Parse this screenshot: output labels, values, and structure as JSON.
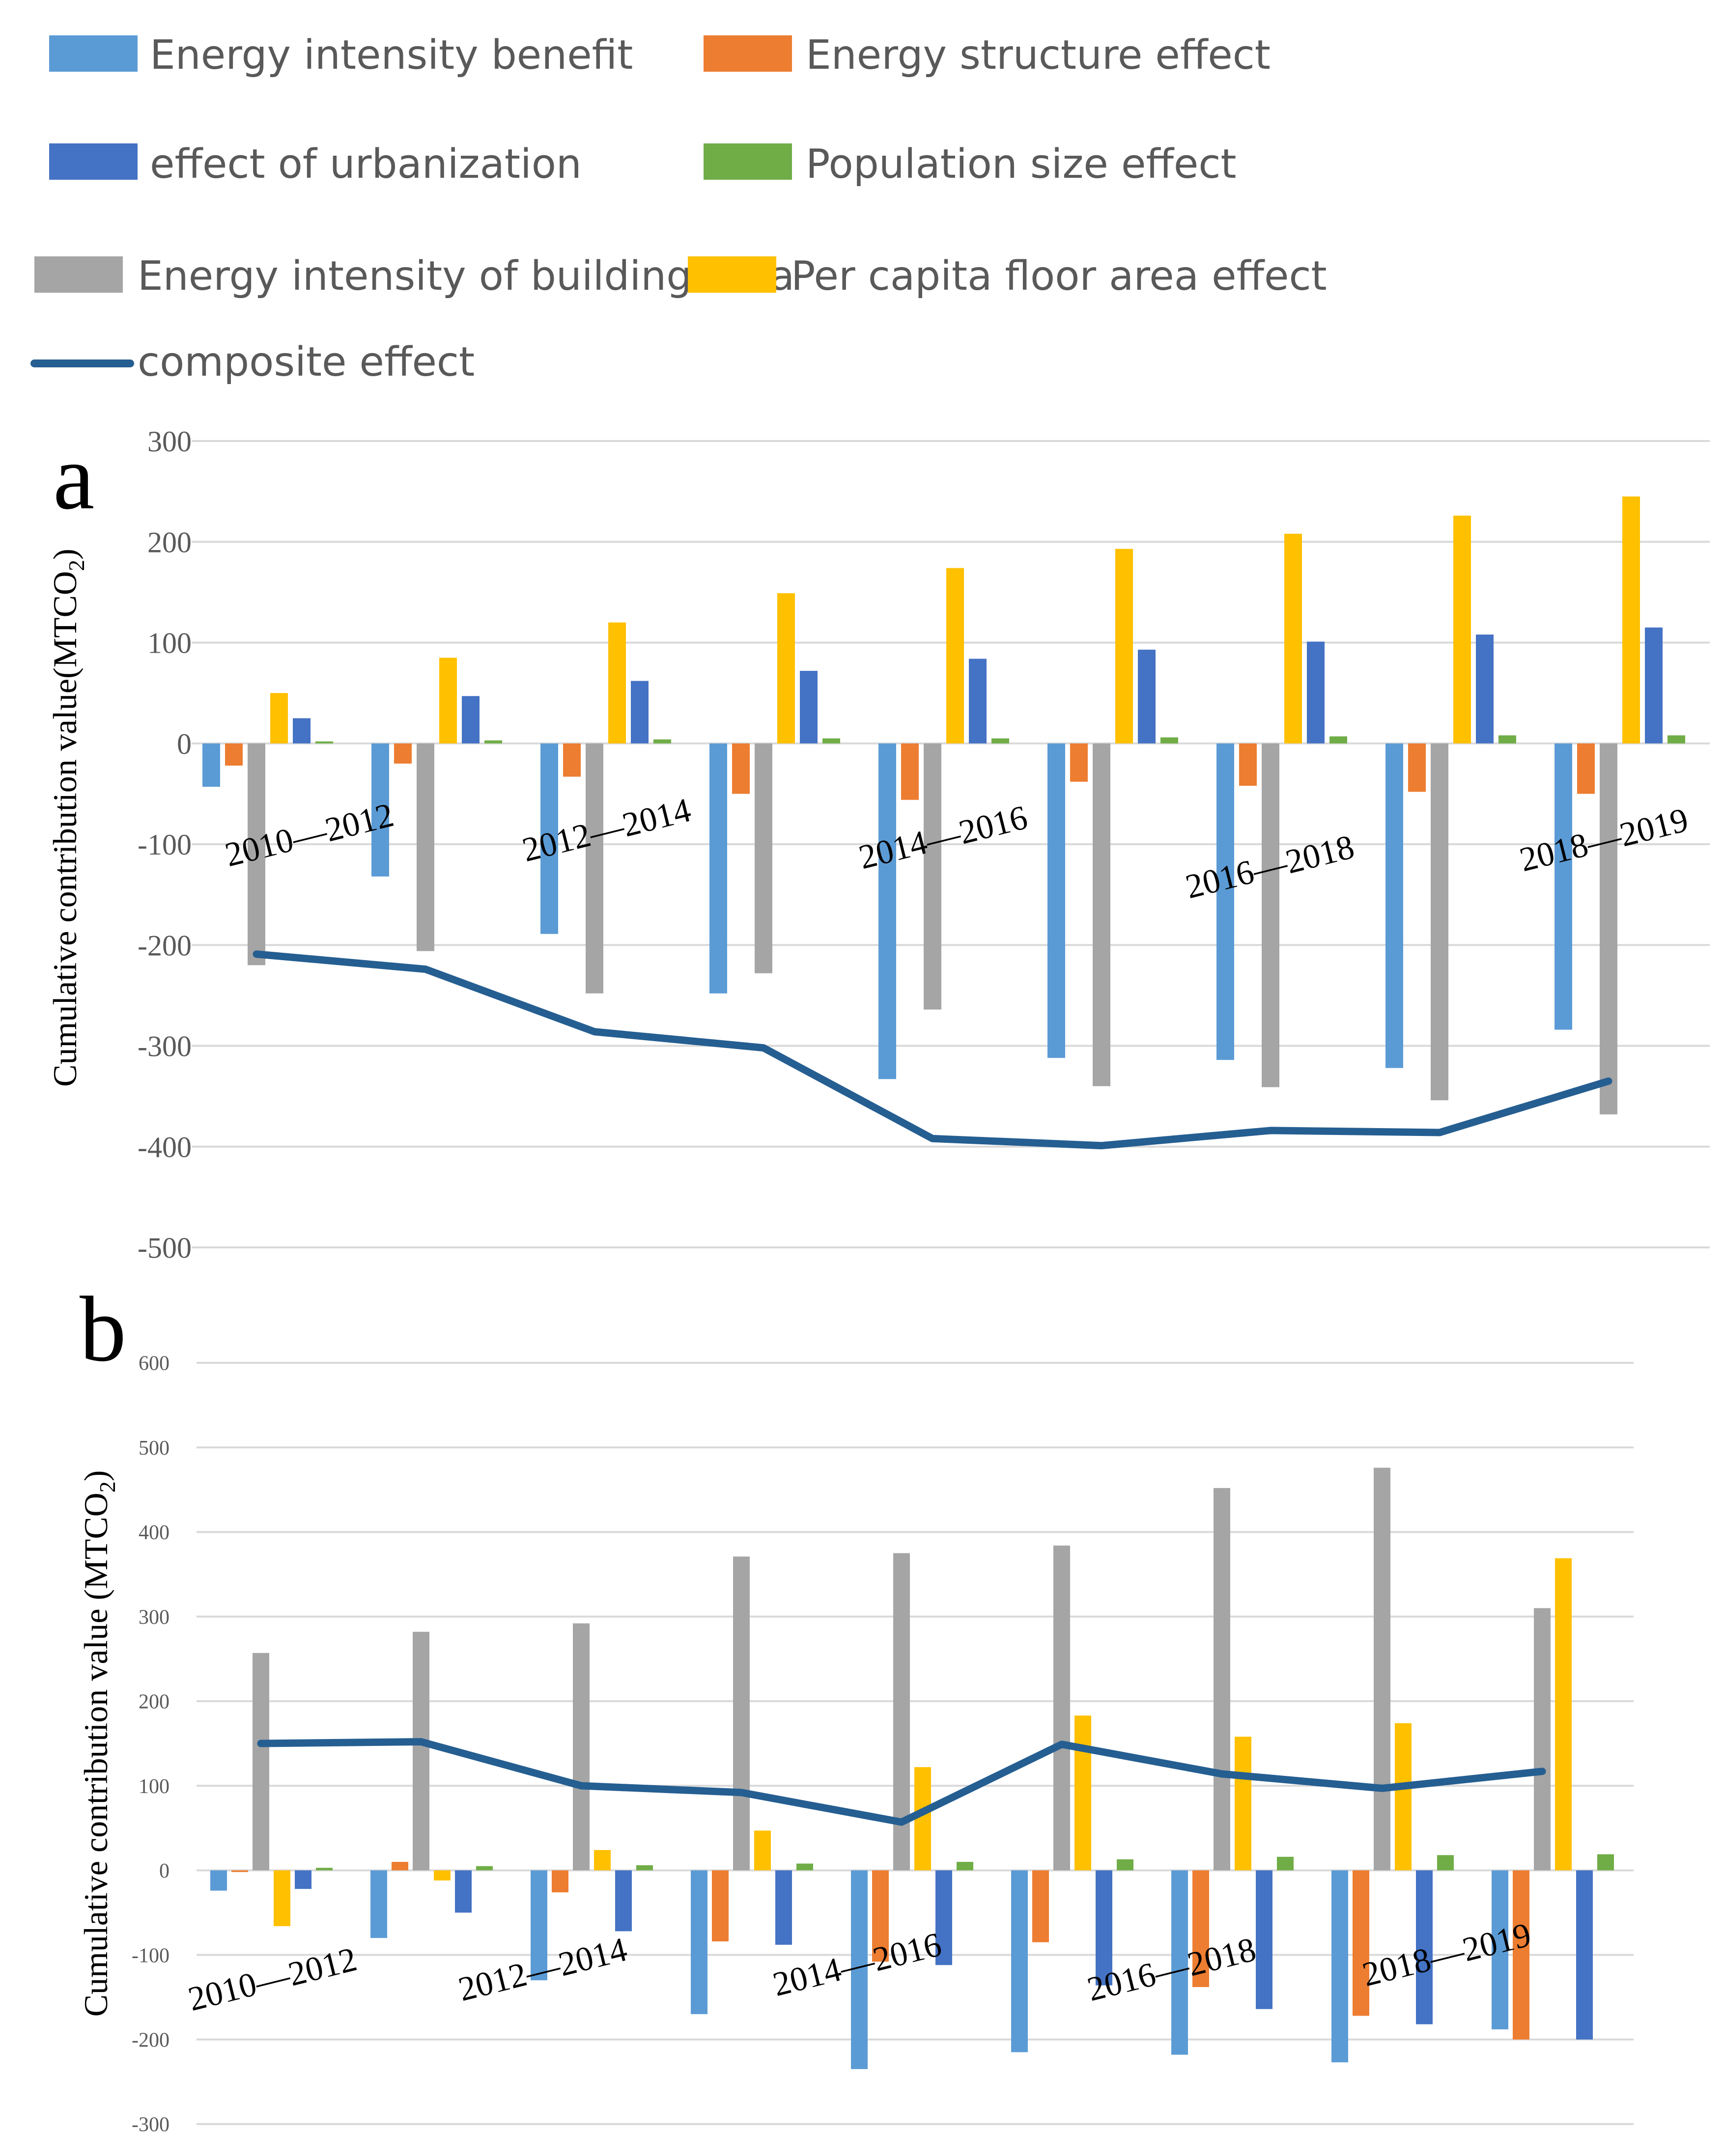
{
  "legend": [
    {
      "key": "intensity",
      "label": "Energy intensity benefit",
      "color": "#5B9BD5",
      "kind": "bar"
    },
    {
      "key": "structure",
      "label": "Energy structure effect",
      "color": "#ED7D31",
      "kind": "bar"
    },
    {
      "key": "urban",
      "label": "effect of urbanization",
      "color": "#4472C4",
      "kind": "bar"
    },
    {
      "key": "population",
      "label": "Population size effect",
      "color": "#70AD47",
      "kind": "bar"
    },
    {
      "key": "building",
      "label": "Energy intensity of building area",
      "color": "#A5A5A5",
      "kind": "bar"
    },
    {
      "key": "floor",
      "label": "Per capita floor area effect",
      "color": "#FFC000",
      "kind": "bar"
    },
    {
      "key": "composite",
      "label": "composite effect",
      "color": "#255E91",
      "kind": "line"
    }
  ],
  "chart_data": [
    {
      "panel": "a",
      "type": "bar",
      "ylabel": "Cumulative contribution value(MTCO",
      "ylabel_sub": "2",
      "ylabel_end": ")",
      "ylim": [
        -500,
        300
      ],
      "yticks": [
        300,
        200,
        100,
        0,
        -100,
        -200,
        -300,
        -400,
        -500
      ],
      "grid": true,
      "period_labels": [
        "2010—2012",
        "2012—2014",
        "2014—2016",
        "2016—2018",
        "2018—2019"
      ],
      "series": [
        {
          "key": "intensity",
          "values": [
            -43,
            -132,
            -189,
            -248,
            -333,
            -312,
            -314,
            -322,
            -284
          ]
        },
        {
          "key": "structure",
          "values": [
            -22,
            -20,
            -33,
            -50,
            -56,
            -38,
            -42,
            -48,
            -50
          ]
        },
        {
          "key": "building",
          "values": [
            -220,
            -206,
            -248,
            -228,
            -264,
            -340,
            -341,
            -354,
            -368
          ]
        },
        {
          "key": "floor",
          "values": [
            50,
            85,
            120,
            149,
            174,
            193,
            208,
            226,
            245
          ]
        },
        {
          "key": "urban",
          "values": [
            25,
            47,
            62,
            72,
            84,
            93,
            101,
            108,
            115
          ]
        },
        {
          "key": "population",
          "values": [
            2,
            3,
            4,
            5,
            5,
            6,
            7,
            8,
            8
          ]
        }
      ],
      "composite": [
        -209,
        -224,
        -286,
        -302,
        -392,
        -399,
        -384,
        -386,
        -335
      ]
    },
    {
      "panel": "b",
      "type": "bar",
      "ylabel": "Cumulative contribution value (MTCO",
      "ylabel_sub": "2",
      "ylabel_end": ")",
      "ylim": [
        -300,
        600
      ],
      "yticks": [
        600,
        500,
        400,
        300,
        200,
        100,
        0,
        -100,
        -200,
        -300
      ],
      "grid": true,
      "period_labels": [
        "2010—2012",
        "2012—2014",
        "2014—2016",
        "2016—2018",
        "2018—2019"
      ],
      "series": [
        {
          "key": "intensity",
          "values": [
            -24,
            -80,
            -130,
            -170,
            -235,
            -215,
            -218,
            -227,
            -188
          ]
        },
        {
          "key": "structure",
          "values": [
            -2,
            10,
            -26,
            -84,
            -108,
            -85,
            -138,
            -172,
            -200
          ]
        },
        {
          "key": "building",
          "values": [
            257,
            282,
            292,
            371,
            375,
            384,
            452,
            476,
            310
          ]
        },
        {
          "key": "floor",
          "values": [
            -66,
            -12,
            24,
            47,
            122,
            183,
            158,
            174,
            369
          ]
        },
        {
          "key": "urban",
          "values": [
            -22,
            -50,
            -72,
            -88,
            -112,
            -136,
            -164,
            -182,
            -200
          ]
        },
        {
          "key": "population",
          "values": [
            3,
            5,
            6,
            8,
            10,
            13,
            16,
            18,
            19
          ]
        }
      ],
      "composite": [
        150,
        152,
        100,
        92,
        57,
        149,
        114,
        97,
        117
      ]
    }
  ]
}
